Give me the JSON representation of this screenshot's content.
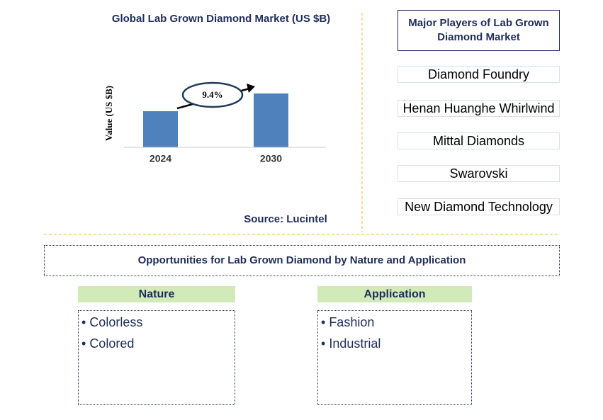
{
  "chart_data": {
    "type": "bar",
    "title": "Global Lab Grown Diamond Market (US $B)",
    "y_label": "Value (US $B)",
    "categories": [
      "2024",
      "2030"
    ],
    "values": [
      20.4,
      30.4
    ],
    "color": "#4f81bd",
    "ylim": [
      0,
      40
    ],
    "annotation": "9.4%",
    "source": "Source: Lucintel"
  },
  "players": {
    "title": "Major Players of Lab Grown Diamond Market",
    "items": [
      "Diamond Foundry",
      "Henan Huanghe Whirlwind",
      "Mittal Diamonds",
      "Swarovski",
      "New Diamond Technology"
    ]
  },
  "opportunities": {
    "title": "Opportunities for Lab Grown Diamond by Nature and Application",
    "groups": [
      {
        "title": "Nature",
        "items": [
          "Colorless",
          "Colored"
        ]
      },
      {
        "title": "Application",
        "items": [
          "Fashion",
          "Industrial"
        ]
      }
    ]
  }
}
